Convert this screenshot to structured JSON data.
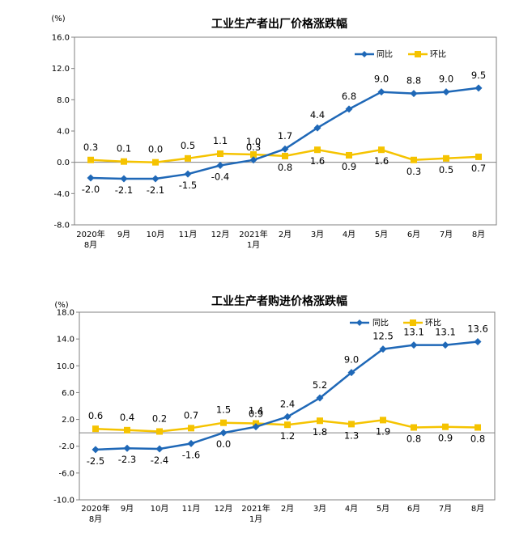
{
  "chart_data": [
    {
      "type": "line",
      "title": "工业生产者出厂价格涨跌幅",
      "unit": "(%)",
      "categories": [
        [
          "2020年",
          "8月"
        ],
        [
          "9月"
        ],
        [
          "10月"
        ],
        [
          "11月"
        ],
        [
          "12月"
        ],
        [
          "2021年",
          "1月"
        ],
        [
          "2月"
        ],
        [
          "3月"
        ],
        [
          "4月"
        ],
        [
          "5月"
        ],
        [
          "6月"
        ],
        [
          "7月"
        ],
        [
          "8月"
        ]
      ],
      "ylim": [
        -8,
        16
      ],
      "yticks": [
        -8,
        -4,
        0,
        4,
        8,
        12,
        16
      ],
      "ytick_labels": [
        "-8.0",
        "-4.0",
        "0.0",
        "4.0",
        "8.0",
        "12.0",
        "16.0"
      ],
      "legend_position": "top-right",
      "series": [
        {
          "name": "同比",
          "color": "#1F68B7",
          "marker": "diamond",
          "values": [
            -2.0,
            -2.1,
            -2.1,
            -1.5,
            -0.4,
            0.3,
            1.7,
            4.4,
            6.8,
            9.0,
            8.8,
            9.0,
            9.5
          ],
          "labels": [
            "-2.0",
            "-2.1",
            "-2.1",
            "-1.5",
            "-0.4",
            "0.3",
            "1.7",
            "4.4",
            "6.8",
            "9.0",
            "8.8",
            "9.0",
            "9.5"
          ]
        },
        {
          "name": "环比",
          "color": "#F5C300",
          "marker": "square",
          "values": [
            0.3,
            0.1,
            0.0,
            0.5,
            1.1,
            1.0,
            0.8,
            1.6,
            0.9,
            1.6,
            0.3,
            0.5,
            0.7
          ],
          "labels": [
            "0.3",
            "0.1",
            "0.0",
            "0.5",
            "1.1",
            "1.0",
            "0.8",
            "1.6",
            "0.9",
            "1.6",
            "0.3",
            "0.5",
            "0.7"
          ]
        }
      ]
    },
    {
      "type": "line",
      "title": "工业生产者购进价格涨跌幅",
      "unit": "(%)",
      "categories": [
        [
          "2020年",
          "8月"
        ],
        [
          "9月"
        ],
        [
          "10月"
        ],
        [
          "11月"
        ],
        [
          "12月"
        ],
        [
          "2021年",
          "1月"
        ],
        [
          "2月"
        ],
        [
          "3月"
        ],
        [
          "4月"
        ],
        [
          "5月"
        ],
        [
          "6月"
        ],
        [
          "7月"
        ],
        [
          "8月"
        ]
      ],
      "ylim": [
        -10,
        18
      ],
      "yticks": [
        -10,
        -6,
        -2,
        2,
        6,
        10,
        14,
        18
      ],
      "ytick_labels": [
        "-10.0",
        "-6.0",
        "-2.0",
        "2.0",
        "6.0",
        "10.0",
        "14.0",
        "18.0"
      ],
      "legend_position": "top-right",
      "series": [
        {
          "name": "同比",
          "color": "#1F68B7",
          "marker": "diamond",
          "values": [
            -2.5,
            -2.3,
            -2.4,
            -1.6,
            0.0,
            0.9,
            2.4,
            5.2,
            9.0,
            12.5,
            13.1,
            13.1,
            13.6
          ],
          "labels": [
            "-2.5",
            "-2.3",
            "-2.4",
            "-1.6",
            "0.0",
            "0.9",
            "2.4",
            "5.2",
            "9.0",
            "12.5",
            "13.1",
            "13.1",
            "13.6"
          ]
        },
        {
          "name": "环比",
          "color": "#F5C300",
          "marker": "square",
          "values": [
            0.6,
            0.4,
            0.2,
            0.7,
            1.5,
            1.4,
            1.2,
            1.8,
            1.3,
            1.9,
            0.8,
            0.9,
            0.8
          ],
          "labels": [
            "0.6",
            "0.4",
            "0.2",
            "0.7",
            "1.5",
            "1.4",
            "1.2",
            "1.8",
            "1.3",
            "1.9",
            "0.8",
            "0.9",
            "0.8"
          ]
        }
      ]
    }
  ]
}
